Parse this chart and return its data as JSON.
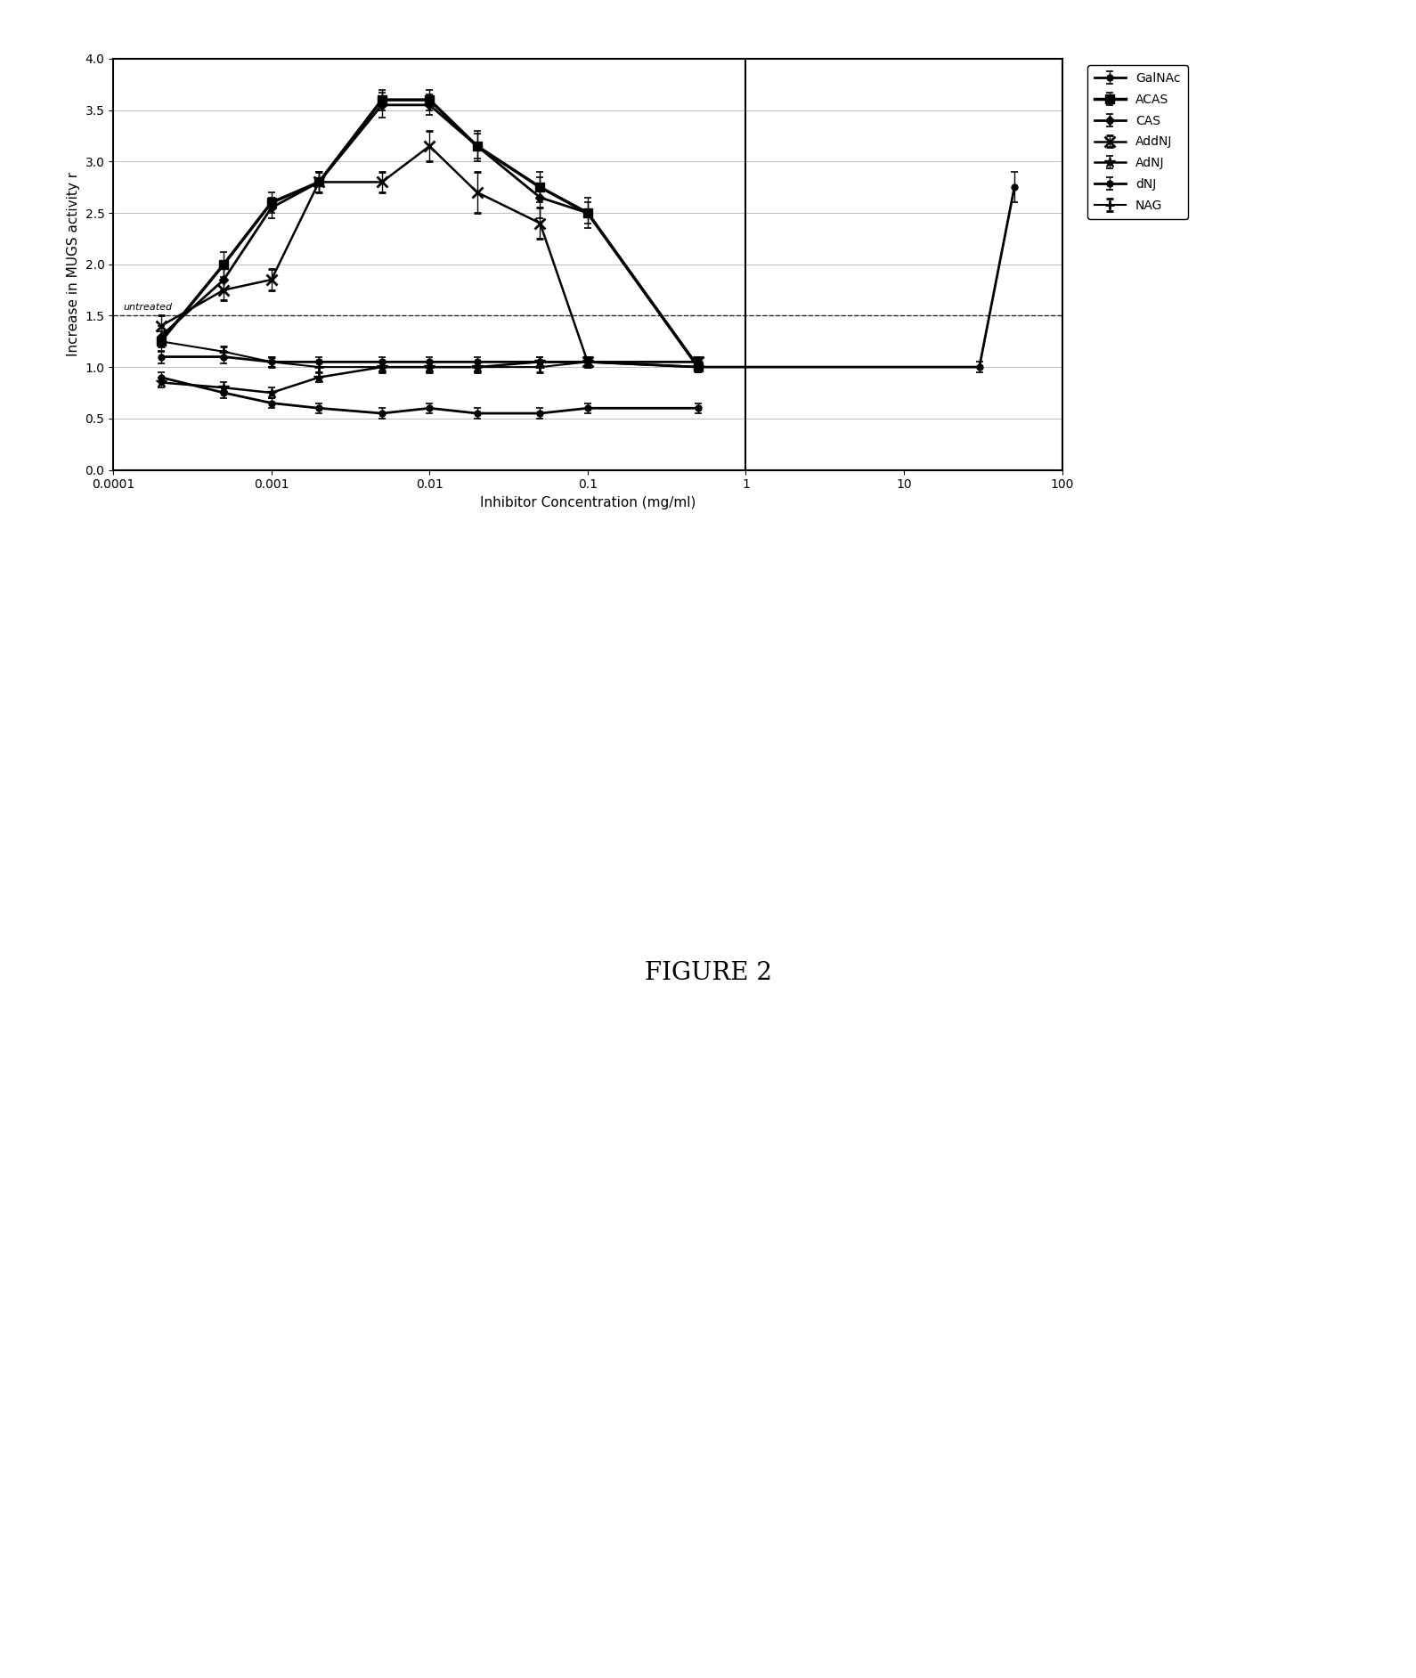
{
  "title": "FIGURE 2",
  "ylabel": "Increase in MUGS activity r",
  "xlabel": "Inhibitor Concentration (mg/ml)",
  "xlim": [
    0.0001,
    100
  ],
  "ylim": [
    0,
    4
  ],
  "untreated_y": 1.5,
  "vertical_line_x": 1.0,
  "series": {
    "GalNAc": {
      "x": [
        0.0002,
        0.0005,
        0.001,
        0.002,
        0.005,
        0.01,
        0.02,
        0.05,
        0.1,
        0.5,
        30,
        50
      ],
      "y": [
        1.1,
        1.1,
        1.05,
        1.05,
        1.05,
        1.05,
        1.05,
        1.05,
        1.05,
        1.0,
        1.0,
        2.75
      ],
      "yerr": [
        0.06,
        0.06,
        0.05,
        0.05,
        0.05,
        0.05,
        0.05,
        0.05,
        0.05,
        0.05,
        0.05,
        0.15
      ],
      "marker": "o",
      "markersize": 5,
      "linewidth": 2.0,
      "filled": true
    },
    "ACAS": {
      "x": [
        0.0002,
        0.0005,
        0.001,
        0.002,
        0.005,
        0.01,
        0.02,
        0.05,
        0.1,
        0.5
      ],
      "y": [
        1.25,
        2.0,
        2.6,
        2.8,
        3.6,
        3.6,
        3.15,
        2.75,
        2.5,
        1.0
      ],
      "yerr": [
        0.1,
        0.12,
        0.1,
        0.1,
        0.1,
        0.1,
        0.12,
        0.15,
        0.1,
        0.05
      ],
      "marker": "s",
      "markersize": 7,
      "linewidth": 2.5,
      "filled": true
    },
    "CAS": {
      "x": [
        0.0002,
        0.0005,
        0.001,
        0.002,
        0.005,
        0.01,
        0.02,
        0.05,
        0.1,
        0.5
      ],
      "y": [
        1.3,
        1.85,
        2.55,
        2.8,
        3.55,
        3.55,
        3.15,
        2.65,
        2.5,
        1.0
      ],
      "yerr": [
        0.1,
        0.1,
        0.1,
        0.1,
        0.12,
        0.1,
        0.15,
        0.2,
        0.15,
        0.05
      ],
      "marker": "D",
      "markersize": 5,
      "linewidth": 2.0,
      "filled": true
    },
    "AddNJ": {
      "x": [
        0.0002,
        0.0005,
        0.001,
        0.002,
        0.005,
        0.01,
        0.02,
        0.05,
        0.1,
        0.5
      ],
      "y": [
        1.4,
        1.75,
        1.85,
        2.8,
        2.8,
        3.15,
        2.7,
        2.4,
        1.05,
        1.05
      ],
      "yerr": [
        0.1,
        0.1,
        0.1,
        0.1,
        0.1,
        0.15,
        0.2,
        0.15,
        0.05,
        0.05
      ],
      "marker": "x",
      "markersize": 8,
      "linewidth": 1.8,
      "filled": false
    },
    "AdNJ": {
      "x": [
        0.0002,
        0.0005,
        0.001,
        0.002,
        0.005,
        0.01,
        0.02,
        0.05,
        0.1,
        0.5
      ],
      "y": [
        0.85,
        0.8,
        0.75,
        0.9,
        1.0,
        1.0,
        1.0,
        1.05,
        1.05,
        1.0
      ],
      "yerr": [
        0.05,
        0.05,
        0.05,
        0.05,
        0.05,
        0.05,
        0.05,
        0.05,
        0.05,
        0.05
      ],
      "marker": "*",
      "markersize": 9,
      "linewidth": 1.8,
      "filled": true
    },
    "dNJ": {
      "x": [
        0.0002,
        0.0005,
        0.001,
        0.002,
        0.005,
        0.01,
        0.02,
        0.05,
        0.1,
        0.5
      ],
      "y": [
        0.9,
        0.75,
        0.65,
        0.6,
        0.55,
        0.6,
        0.55,
        0.55,
        0.6,
        0.6
      ],
      "yerr": [
        0.05,
        0.05,
        0.05,
        0.05,
        0.05,
        0.05,
        0.05,
        0.05,
        0.05,
        0.05
      ],
      "marker": "o",
      "markersize": 5,
      "linewidth": 2.0,
      "filled": true
    },
    "NAG": {
      "x": [
        0.0002,
        0.0005,
        0.001,
        0.002,
        0.005,
        0.01,
        0.02,
        0.05,
        0.1,
        0.5
      ],
      "y": [
        1.25,
        1.15,
        1.05,
        1.0,
        1.0,
        1.0,
        1.0,
        1.0,
        1.05,
        1.05
      ],
      "yerr": [
        0.05,
        0.05,
        0.05,
        0.05,
        0.05,
        0.05,
        0.05,
        0.05,
        0.05,
        0.05
      ],
      "marker": "+",
      "markersize": 7,
      "linewidth": 1.5,
      "filled": false
    }
  },
  "legend_labels": [
    "GalNAc",
    "ACAS",
    "CAS",
    "AddNJ",
    "AdNJ",
    "dNJ",
    "NAG"
  ],
  "yticks": [
    0,
    0.5,
    1,
    1.5,
    2,
    2.5,
    3,
    3.5,
    4
  ],
  "xtick_labels": [
    "0.0001",
    "0.001",
    "0.01",
    "0.1",
    "1",
    "10",
    "100"
  ],
  "xtick_vals": [
    0.0001,
    0.001,
    0.01,
    0.1,
    1,
    10,
    100
  ],
  "figure_label": "FIGURE 2",
  "figure_label_fontsize": 20,
  "axis_fontsize": 11,
  "tick_fontsize": 10,
  "legend_fontsize": 10
}
